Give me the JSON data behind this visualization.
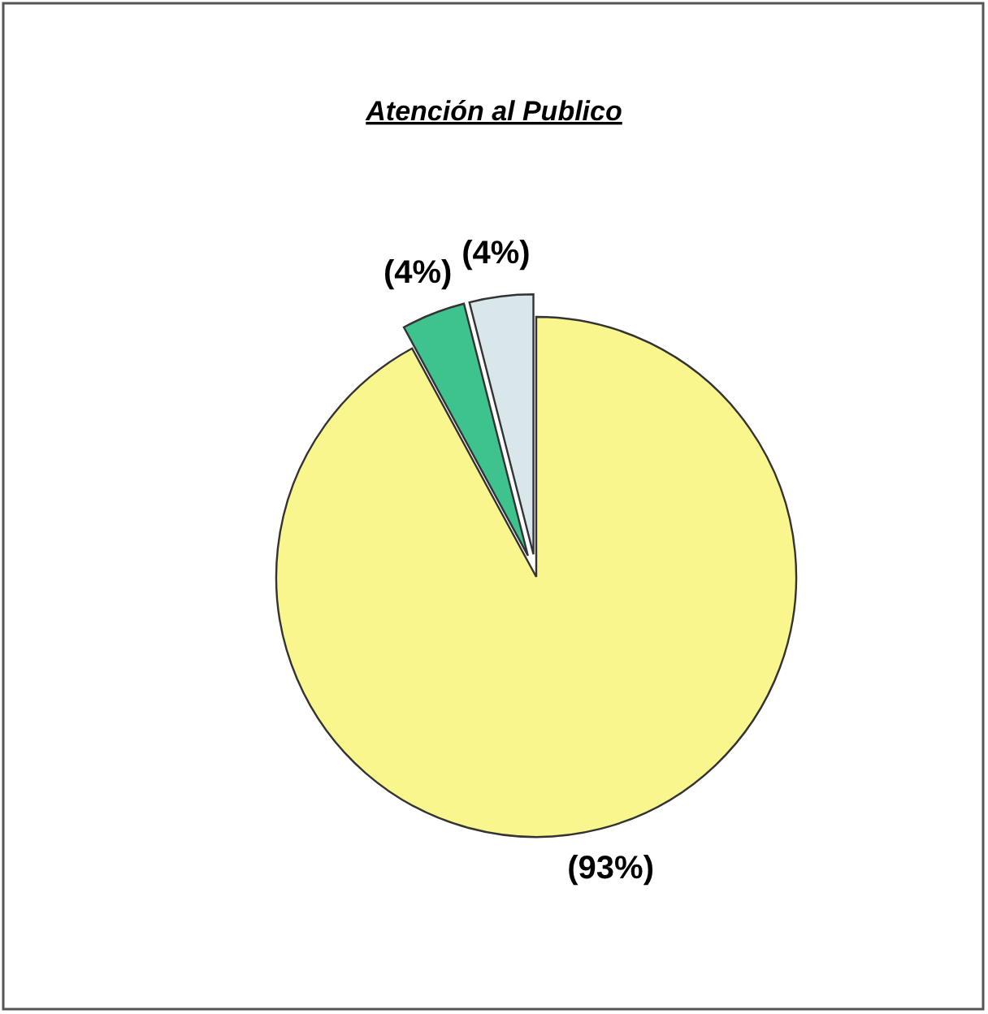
{
  "chart_data": {
    "type": "pie",
    "title": "Atención al Publico",
    "categories": [
      null,
      null,
      null
    ],
    "values": [
      93,
      4,
      4
    ],
    "colors": [
      "#f8f68c",
      "#3fc38e",
      "#d9e7ea"
    ],
    "value_labels": [
      "(93%)",
      "(4%)",
      "(4%)"
    ]
  }
}
